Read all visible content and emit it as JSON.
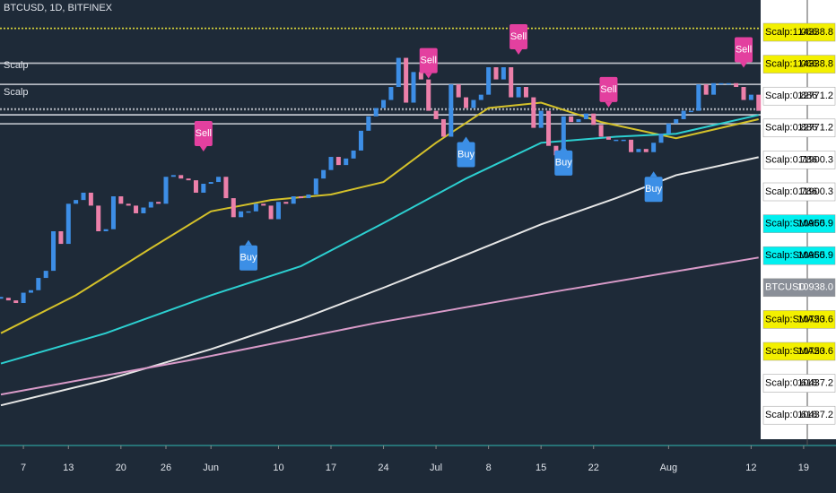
{
  "chart_data": {
    "type": "candlestick",
    "title": "BTCUSD, 1D, BITFINEX",
    "indicators": [
      "Scalp",
      "Scalp"
    ],
    "log": true,
    "ylim": [
      3600,
      15760
    ],
    "xlim": [
      0,
      110
    ],
    "up_color": "#3d8ee6",
    "down_color": "#ec80aa",
    "close": [
      5850,
      5800,
      5750,
      5950,
      6000,
      6250,
      6400,
      7300,
      7000,
      8000,
      8100,
      8300,
      7950,
      7300,
      7350,
      8200,
      8000,
      7950,
      7750,
      7900,
      8050,
      8000,
      8750,
      8800,
      8700,
      8650,
      8300,
      8550,
      8600,
      8750,
      8150,
      7650,
      7800,
      7800,
      8000,
      7950,
      7600,
      8050,
      8000,
      8200,
      8150,
      8250,
      8700,
      8950,
      9350,
      9100,
      9300,
      9550,
      10200,
      10700,
      11000,
      11300,
      11800,
      13000,
      11200,
      12400,
      12100,
      10900,
      10600,
      10000,
      11900,
      11400,
      11000,
      11300,
      11500,
      12600,
      12100,
      12600,
      11400,
      11800,
      11400,
      10300,
      10900,
      9700,
      9400,
      10700,
      10500,
      10600,
      10800,
      10400,
      10000,
      9900,
      9900,
      9900,
      9500,
      9600,
      9500,
      9800,
      10100,
      10450,
      10600,
      10900,
      10900,
      11900,
      11500,
      11950,
      11950,
      11950,
      11800,
      11300,
      11500,
      10900
    ],
    "xticks": [
      {
        "value": 3,
        "label": "7"
      },
      {
        "value": 9,
        "label": "13"
      },
      {
        "value": 16,
        "label": "20"
      },
      {
        "value": 22,
        "label": "26"
      },
      {
        "value": 28,
        "label": "Jun"
      },
      {
        "value": 37,
        "label": "10"
      },
      {
        "value": 44,
        "label": "17"
      },
      {
        "value": 51,
        "label": "24"
      },
      {
        "value": 58,
        "label": "Jul"
      },
      {
        "value": 65,
        "label": "8"
      },
      {
        "value": 72,
        "label": "15"
      },
      {
        "value": 79,
        "label": "22"
      },
      {
        "value": 89,
        "label": "Aug"
      },
      {
        "value": 100,
        "label": "12"
      },
      {
        "value": 107,
        "label": "19"
      }
    ],
    "lines": [
      {
        "color": "#d4c12a",
        "x": [
          0,
          10,
          20,
          28,
          36,
          44,
          51,
          58,
          65,
          72,
          80,
          90,
          101
        ],
        "values": [
          5200,
          5900,
          6900,
          7800,
          8100,
          8250,
          8600,
          9800,
          11000,
          11200,
          10500,
          9950,
          10600
        ]
      },
      {
        "color": "#2ccfd0",
        "x": [
          0,
          14,
          28,
          40,
          51,
          62,
          72,
          82,
          90,
          101
        ],
        "values": [
          4700,
          5200,
          5900,
          6500,
          7500,
          8700,
          9800,
          10000,
          10100,
          10750
        ]
      },
      {
        "color": "#e6e6e6",
        "x": [
          0,
          14,
          28,
          40,
          51,
          62,
          72,
          82,
          90,
          101
        ],
        "values": [
          4090,
          4450,
          4930,
          5450,
          6050,
          6750,
          7470,
          8150,
          8800,
          9340
        ]
      },
      {
        "color": "#d89ac8",
        "x": [
          0,
          25,
          50,
          75,
          101
        ],
        "values": [
          4240,
          4750,
          5380,
          6000,
          6690
        ]
      }
    ],
    "levels": [
      {
        "name": "Scalp:1.066",
        "value": 14338.8,
        "bg": "#f3f000",
        "line": "#d8d43a",
        "dashed": true
      },
      {
        "name": "Scalp:1.066",
        "value": 14338.8,
        "bg": "#f3f000",
        "line": "#d8d43a",
        "dashed": true
      },
      {
        "name": "Scalp:0.886",
        "value": 12771.2,
        "bg": "#ffffff",
        "line": "#b8bcc4",
        "dashed": false
      },
      {
        "name": "Scalp:0.886",
        "value": 12771.2,
        "bg": "#ffffff",
        "line": "#b8bcc4",
        "dashed": false
      },
      {
        "name": "Scalp:0.786",
        "value": 11900.3,
        "bg": "#ffffff",
        "line": "#b8bcc4",
        "dashed": false
      },
      {
        "name": "Scalp:0.786",
        "value": 11900.3,
        "bg": "#ffffff",
        "line": "#b8bcc4",
        "dashed": false
      },
      {
        "name": "Scalp:SMA50",
        "value": 10965.9,
        "bg": "#00f0f0",
        "line": "#c8ccd4",
        "dashed": true
      },
      {
        "name": "Scalp:SMA50",
        "value": 10965.9,
        "bg": "#00f0f0",
        "line": "#c8ccd4",
        "dashed": true
      },
      {
        "name": "BTCUSD",
        "value": 10938,
        "value_label": "10938.0",
        "bg": "#8a8f98",
        "line": "#8a8f98",
        "dashed": true
      },
      {
        "name": "Scalp:SMA20",
        "value": 10753.6,
        "bg": "#f3f000",
        "line": "#c8ccd4",
        "dashed": false
      },
      {
        "name": "Scalp:SMA20",
        "value": 10753.6,
        "bg": "#f3f000",
        "line": "#c8ccd4",
        "dashed": false
      },
      {
        "name": "Scalp:0.618",
        "value": 10437.2,
        "bg": "#ffffff",
        "line": "#b8bcc4",
        "dashed": false
      },
      {
        "name": "Scalp:0.618",
        "value": 10437.2,
        "bg": "#ffffff",
        "line": "#b8bcc4",
        "dashed": false
      }
    ],
    "signals": [
      {
        "label": "Sell",
        "x": 27
      },
      {
        "label": "Buy",
        "x": 33
      },
      {
        "label": "Sell",
        "x": 57
      },
      {
        "label": "Buy",
        "x": 62
      },
      {
        "label": "Sell",
        "x": 69
      },
      {
        "label": "Buy",
        "x": 75
      },
      {
        "label": "Sell",
        "x": 81
      },
      {
        "label": "Buy",
        "x": 87
      },
      {
        "label": "Sell",
        "x": 99
      }
    ]
  }
}
